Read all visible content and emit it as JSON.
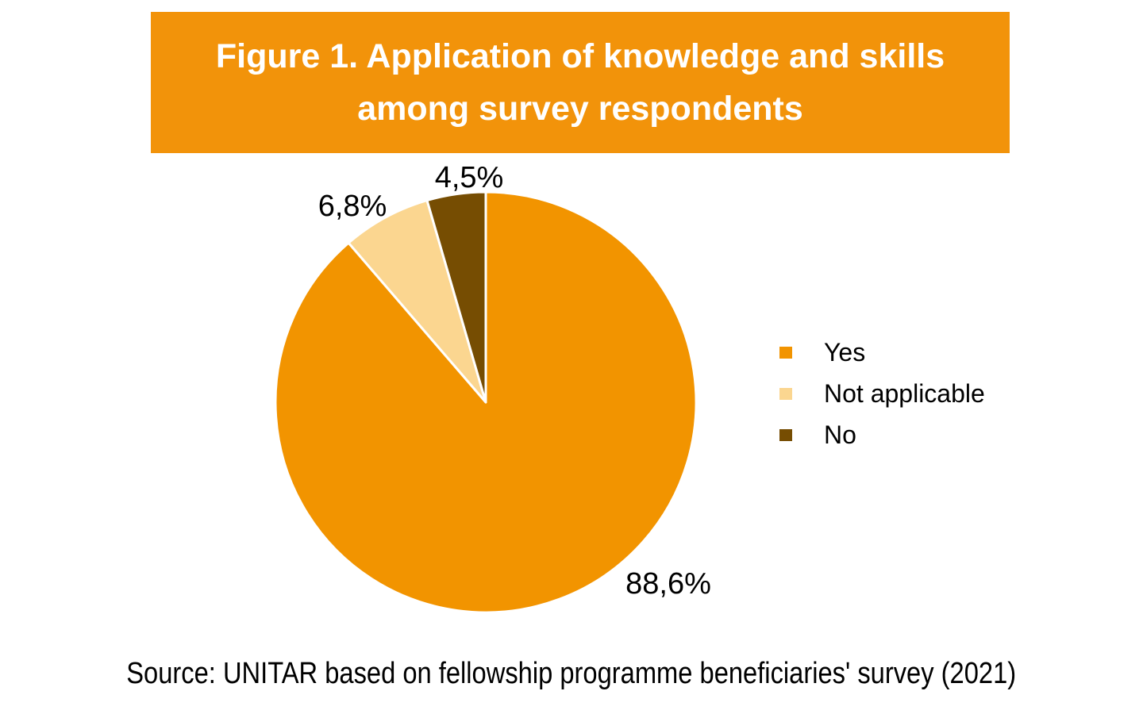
{
  "header": {
    "title_line1": "Figure 1. Application of knowledge and skills",
    "title_line2": "among survey respondents",
    "background_color": "#F2930A",
    "text_color": "#FFFFFF"
  },
  "chart_data": {
    "type": "pie",
    "title": "Figure 1. Application of knowledge and skills among survey respondents",
    "start_angle_deg": 0,
    "direction": "clockwise",
    "legend_position": "right",
    "decimal_separator": ",",
    "series": [
      {
        "name": "Yes",
        "value": 88.6,
        "label": "88,6%",
        "color": "#F29400"
      },
      {
        "name": "Not applicable",
        "value": 6.8,
        "label": "6,8%",
        "color": "#FBD690"
      },
      {
        "name": "No",
        "value": 4.5,
        "label": "4,5%",
        "color": "#764D02"
      }
    ]
  },
  "footer": {
    "source": "Source: UNITAR based on fellowship programme beneficiaries' survey (2021)"
  }
}
